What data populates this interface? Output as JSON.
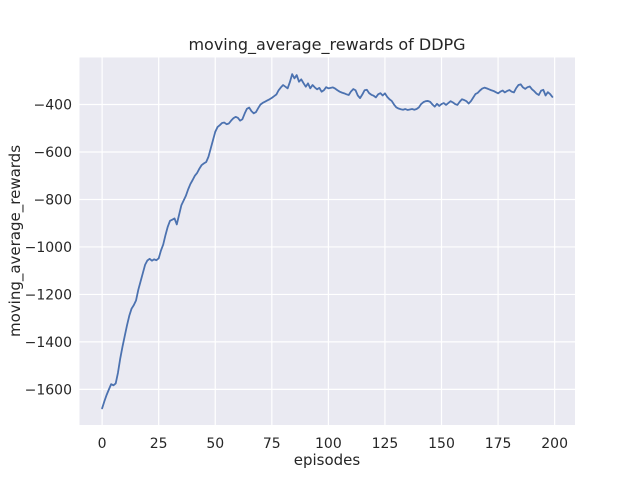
{
  "figure": {
    "title": "moving_average_rewards of DDPG",
    "xlabel": "episodes",
    "ylabel": "moving_average_rewards"
  },
  "chart_data": {
    "type": "line",
    "title": "moving_average_rewards of DDPG",
    "xlabel": "episodes",
    "ylabel": "moving_average_rewards",
    "legend": "none",
    "grid": true,
    "plot_bg_color": "#eaeaf2",
    "grid_color": "#ffffff",
    "line_color": "#4c72b0",
    "text_color": "#262626",
    "xlim": [
      -10,
      209
    ],
    "ylim": [
      -1750,
      -202
    ],
    "x_ticks": [
      0,
      25,
      50,
      75,
      100,
      125,
      150,
      175,
      200
    ],
    "x_tick_labels": [
      "0",
      "25",
      "50",
      "75",
      "100",
      "125",
      "150",
      "175",
      "200"
    ],
    "y_ticks": [
      -400,
      -600,
      -800,
      -1000,
      -1200,
      -1400,
      -1600
    ],
    "y_tick_labels": [
      "−400",
      "−600",
      "−800",
      "−1000",
      "−1200",
      "−1400",
      "−1600"
    ],
    "series": [
      {
        "name": "moving_average_rewards",
        "x_start": 0,
        "x_step": 1,
        "values": [
          -1680,
          -1650,
          -1623,
          -1600,
          -1578,
          -1583,
          -1575,
          -1530,
          -1470,
          -1420,
          -1375,
          -1330,
          -1290,
          -1260,
          -1245,
          -1225,
          -1180,
          -1145,
          -1110,
          -1075,
          -1057,
          -1050,
          -1058,
          -1052,
          -1056,
          -1048,
          -1015,
          -990,
          -950,
          -915,
          -890,
          -885,
          -880,
          -905,
          -865,
          -825,
          -805,
          -785,
          -758,
          -735,
          -718,
          -700,
          -688,
          -670,
          -655,
          -648,
          -642,
          -620,
          -585,
          -550,
          -515,
          -495,
          -487,
          -478,
          -476,
          -483,
          -480,
          -468,
          -458,
          -452,
          -456,
          -468,
          -462,
          -438,
          -418,
          -413,
          -428,
          -437,
          -432,
          -415,
          -400,
          -393,
          -388,
          -383,
          -378,
          -372,
          -365,
          -358,
          -340,
          -328,
          -318,
          -325,
          -332,
          -305,
          -272,
          -290,
          -276,
          -304,
          -294,
          -310,
          -325,
          -311,
          -332,
          -318,
          -328,
          -336,
          -330,
          -346,
          -340,
          -327,
          -332,
          -330,
          -328,
          -333,
          -340,
          -346,
          -350,
          -353,
          -357,
          -360,
          -345,
          -335,
          -340,
          -362,
          -373,
          -358,
          -340,
          -338,
          -352,
          -359,
          -363,
          -370,
          -357,
          -352,
          -362,
          -353,
          -368,
          -378,
          -385,
          -400,
          -412,
          -417,
          -420,
          -422,
          -419,
          -423,
          -421,
          -419,
          -422,
          -419,
          -412,
          -398,
          -390,
          -386,
          -385,
          -389,
          -400,
          -409,
          -397,
          -406,
          -398,
          -394,
          -402,
          -394,
          -386,
          -391,
          -398,
          -402,
          -389,
          -378,
          -381,
          -386,
          -396,
          -386,
          -371,
          -356,
          -351,
          -341,
          -333,
          -329,
          -332,
          -336,
          -340,
          -343,
          -348,
          -353,
          -346,
          -341,
          -349,
          -343,
          -339,
          -346,
          -349,
          -331,
          -318,
          -315,
          -328,
          -334,
          -327,
          -324,
          -336,
          -344,
          -354,
          -360,
          -342,
          -338,
          -362,
          -348,
          -356,
          -368
        ]
      }
    ]
  }
}
